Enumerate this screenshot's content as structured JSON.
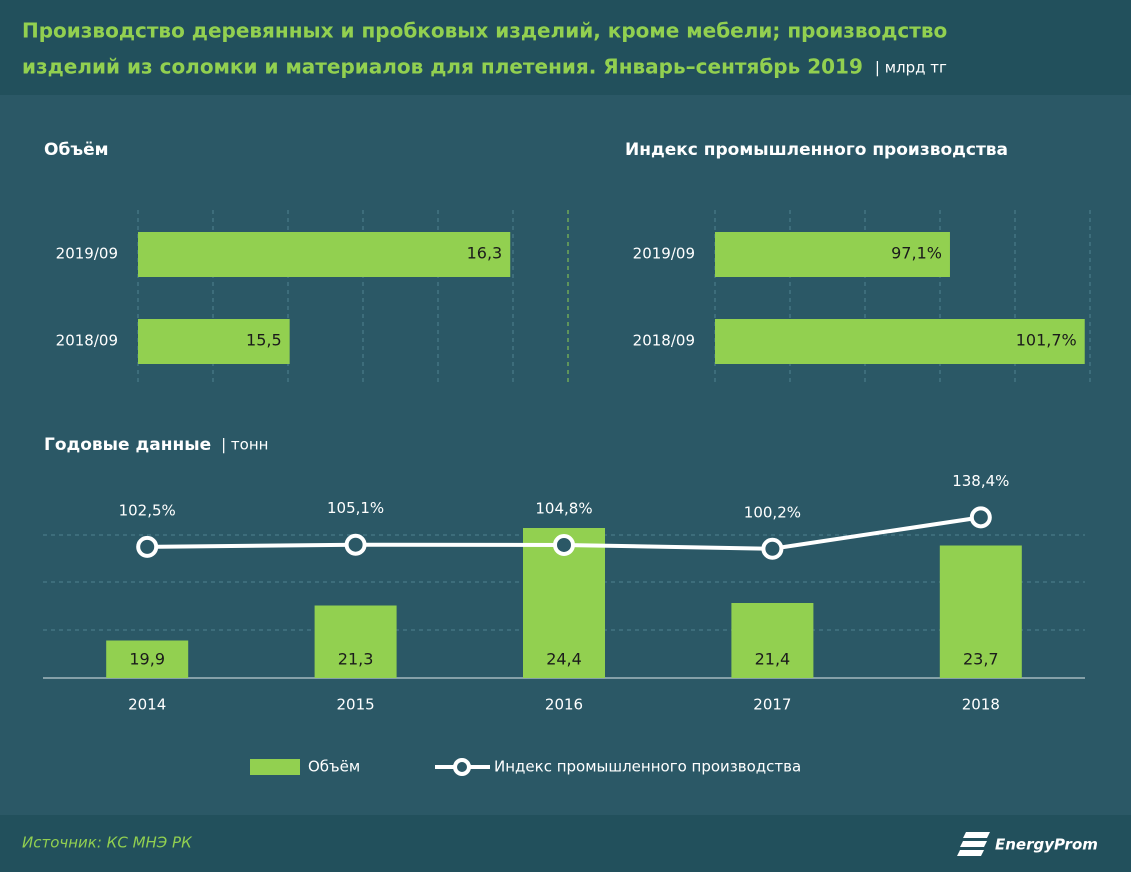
{
  "title": [
    "Производство деревянных и пробковых изделий, кроме мебели; производство",
    "изделий из соломки и материалов для плетения. Январь–сентябрь 2019"
  ],
  "unit": "| млрд тг",
  "chart_data": [
    {
      "type": "hbar",
      "title": "Объём",
      "categories": [
        "2019/09",
        "2018/09"
      ],
      "values": [
        16.3,
        15.5
      ],
      "value_labels": [
        "16,3",
        "15,5"
      ],
      "xlim": [
        14.95,
        16.31
      ],
      "color": "#92d050",
      "grid": true
    },
    {
      "type": "hbar",
      "title": "Индекс промышленного производства",
      "categories": [
        "2019/09",
        "2018/09"
      ],
      "values": [
        97.1,
        101.7
      ],
      "value_labels": [
        "97,1%",
        "101,7%"
      ],
      "xlim": [
        89.08,
        101.88
      ],
      "color": "#92d050",
      "grid": true
    },
    {
      "type": "combo",
      "title": "Годовые данные",
      "unit": "| тонн",
      "categories": [
        "2014",
        "2015",
        "2016",
        "2017",
        "2018"
      ],
      "series": [
        {
          "name": "Объём",
          "color": "#92d050",
          "values": [
            19.9,
            21.3,
            24.4,
            21.4,
            23.7
          ],
          "value_labels": [
            "19,9",
            "21,3",
            "24,4",
            "21,4",
            "23,7"
          ]
        },
        {
          "name": "Индекс промышленного производства",
          "color": "#ffffff",
          "axis": "y2",
          "values": [
            102.5,
            105.1,
            104.8,
            100.2,
            138.4
          ],
          "value_labels": [
            "102,5%",
            "105,1%",
            "104,8%",
            "100,2%",
            "138,4%"
          ]
        }
      ],
      "ylim": [
        18.4,
        26.72
      ],
      "y2lim": [
        -57,
        196
      ],
      "grid": true
    }
  ],
  "source": "Источник: КС МНЭ РК",
  "logo": "EnergyProm"
}
